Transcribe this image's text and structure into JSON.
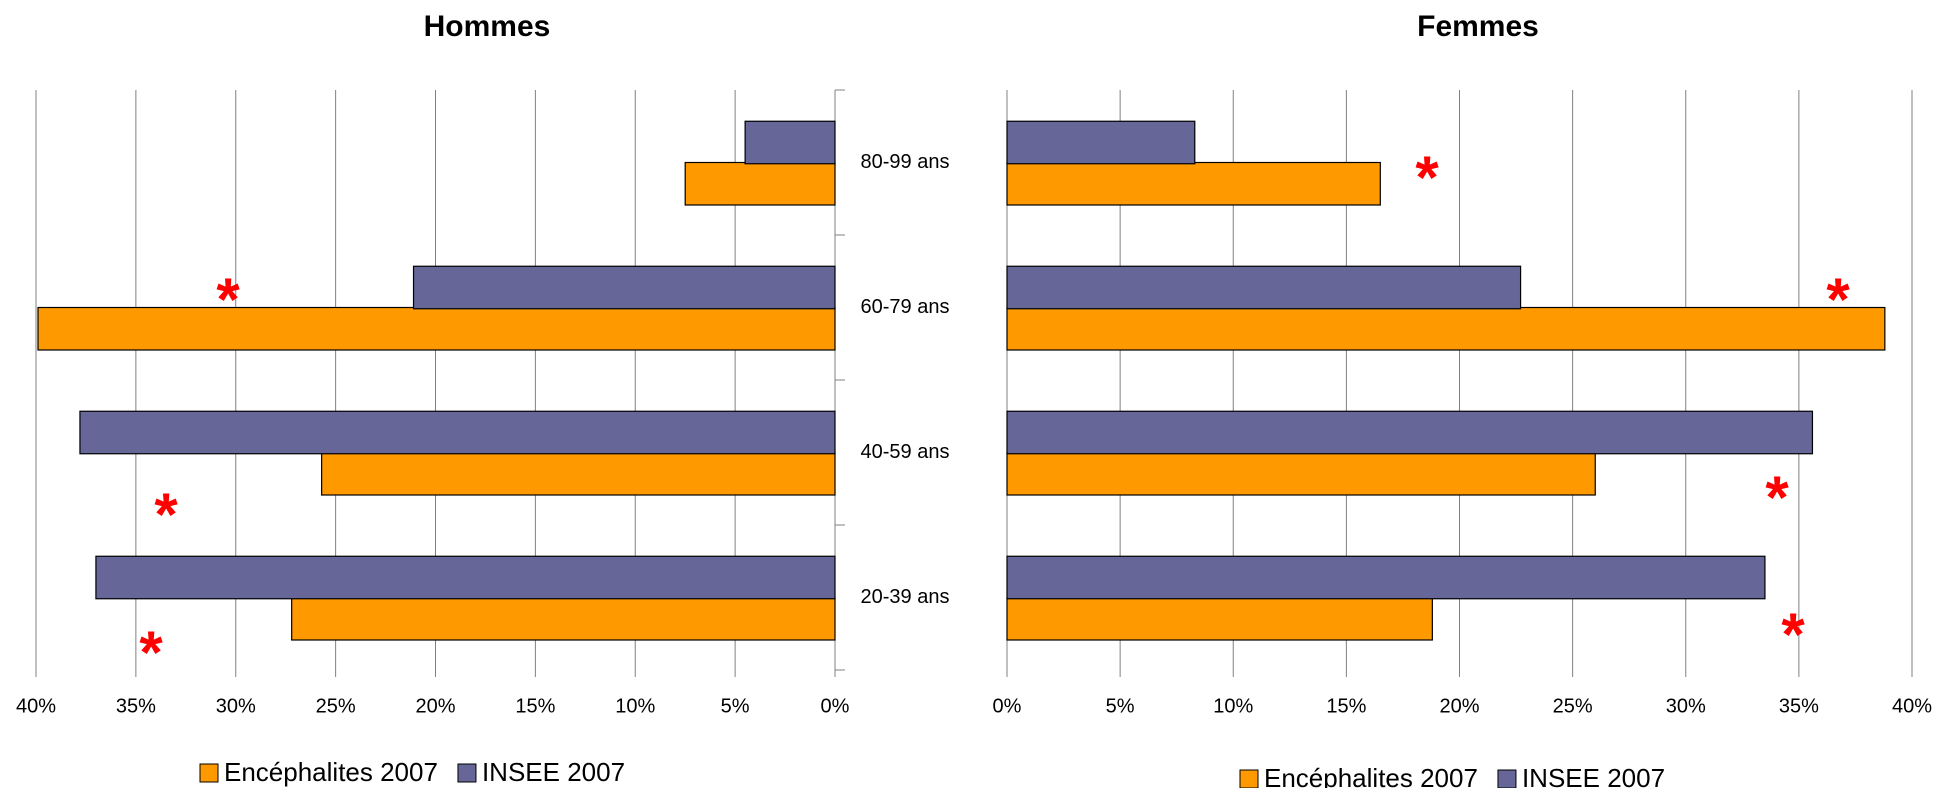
{
  "chart_data": [
    {
      "type": "bar",
      "orientation": "horizontal",
      "title": "Hommes",
      "categories": [
        "80-99 ans",
        "60-79 ans",
        "40-59 ans",
        "20-39 ans"
      ],
      "series": [
        {
          "name": "Encéphalites 2007",
          "color": "#ff9900",
          "values": [
            7.5,
            39.9,
            25.7,
            27.2
          ]
        },
        {
          "name": "INSEE 2007",
          "color": "#666699",
          "values": [
            4.5,
            21.1,
            37.8,
            37.0
          ]
        }
      ],
      "xlim": [
        40,
        0
      ],
      "xticks": [
        {
          "value": 40,
          "label": "40%"
        },
        {
          "value": 35,
          "label": "35%"
        },
        {
          "value": 30,
          "label": "30%"
        },
        {
          "value": 25,
          "label": "25%"
        },
        {
          "value": 20,
          "label": "20%"
        },
        {
          "value": 15,
          "label": "15%"
        },
        {
          "value": 10,
          "label": "10%"
        },
        {
          "value": 5,
          "label": "5%"
        },
        {
          "value": 0,
          "label": "0%"
        }
      ],
      "grid": true,
      "annotations": [
        "*",
        "*",
        "*"
      ]
    },
    {
      "type": "bar",
      "orientation": "horizontal",
      "title": "Femmes",
      "categories": [
        "80-99 ans",
        "60-79 ans",
        "40-59 ans",
        "20-39 ans"
      ],
      "series": [
        {
          "name": "Encéphalites 2007",
          "color": "#ff9900",
          "values": [
            16.5,
            38.8,
            26.0,
            18.8
          ]
        },
        {
          "name": "INSEE 2007",
          "color": "#666699",
          "values": [
            8.3,
            22.7,
            35.6,
            33.5
          ]
        }
      ],
      "xlim": [
        0,
        40
      ],
      "xticks": [
        {
          "value": 0,
          "label": "0%"
        },
        {
          "value": 5,
          "label": "5%"
        },
        {
          "value": 10,
          "label": "10%"
        },
        {
          "value": 15,
          "label": "15%"
        },
        {
          "value": 20,
          "label": "20%"
        },
        {
          "value": 25,
          "label": "25%"
        },
        {
          "value": 30,
          "label": "30%"
        },
        {
          "value": 35,
          "label": "35%"
        },
        {
          "value": 40,
          "label": "40%"
        }
      ],
      "grid": true,
      "annotations": [
        "*",
        "*",
        "*",
        "*"
      ]
    }
  ]
}
